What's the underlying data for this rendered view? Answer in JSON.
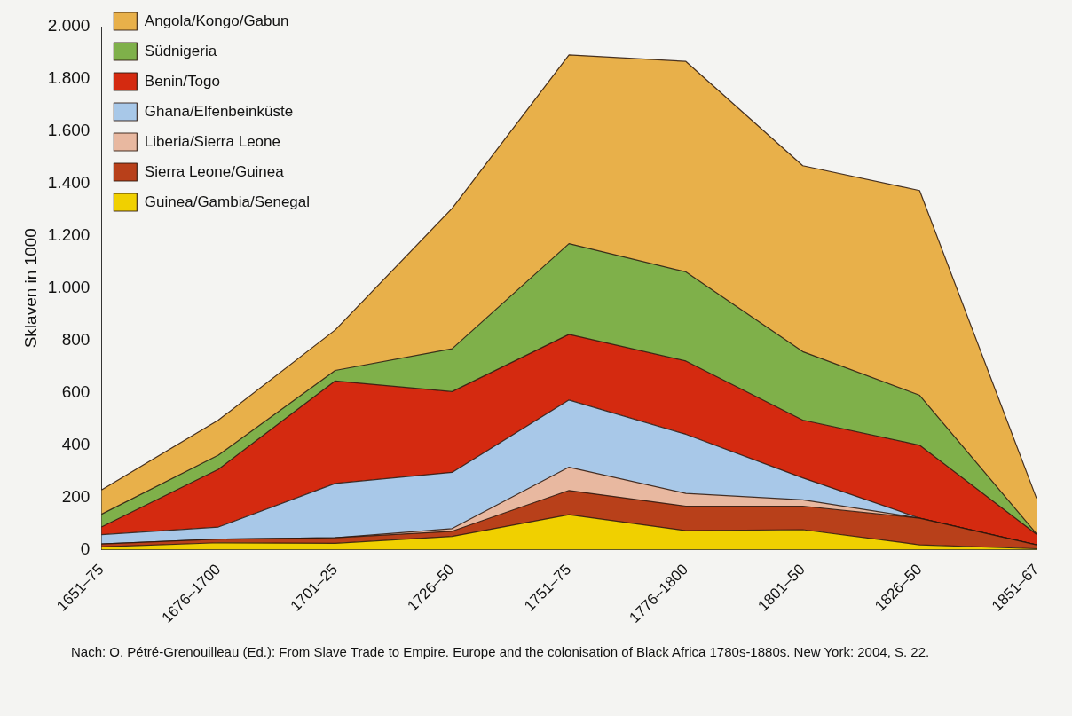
{
  "chart_data": {
    "type": "area",
    "stacked": true,
    "ylabel": "Sklaven in 1000",
    "categories": [
      "1651–75",
      "1676–1700",
      "1701–25",
      "1726–50",
      "1751–75",
      "1776–1800",
      "1801–50",
      "1826–50",
      "1851–67"
    ],
    "series": [
      {
        "name": "Guinea/Gambia/Senegal",
        "color": "#f0d000",
        "values": [
          10,
          26,
          24,
          50,
          133,
          72,
          76,
          18,
          3
        ]
      },
      {
        "name": "Sierra Leone/Guinea",
        "color": "#b8401a",
        "values": [
          11,
          14,
          21,
          20,
          93,
          94,
          90,
          102,
          15
        ]
      },
      {
        "name": "Liberia/Sierra Leone",
        "color": "#e8b8a0",
        "values": [
          0,
          0,
          0,
          10,
          89,
          49,
          24,
          0,
          0
        ]
      },
      {
        "name": "Ghana/Elfenbeinküste",
        "color": "#a8c8e8",
        "values": [
          36,
          46,
          208,
          215,
          257,
          226,
          84,
          0,
          0
        ]
      },
      {
        "name": "Benin/Togo",
        "color": "#d42a10",
        "values": [
          29,
          221,
          392,
          309,
          251,
          280,
          221,
          279,
          40
        ]
      },
      {
        "name": "Südnigeria",
        "color": "#7fb04a",
        "values": [
          49,
          54,
          40,
          164,
          347,
          341,
          262,
          191,
          2
        ]
      },
      {
        "name": "Angola/Kongo/Gabun",
        "color": "#e8b04a",
        "values": [
          93,
          134,
          155,
          537,
          722,
          805,
          711,
          783,
          136
        ]
      }
    ],
    "ylim": [
      0,
      2000
    ],
    "yticks": [
      0,
      200,
      400,
      600,
      800,
      {
        "value": 1000,
        "label": "1.000"
      },
      {
        "value": 1200,
        "label": "1.200"
      },
      {
        "value": 1400,
        "label": "1.400"
      },
      {
        "value": 1600,
        "label": "1.600"
      },
      {
        "value": 1800,
        "label": "1.800"
      },
      {
        "value": 2000,
        "label": "2.000"
      }
    ],
    "grid": false,
    "legend": "top left",
    "marker": "none",
    "annotations": [
      "Nach: O. Pétré-Grenouilleau (Ed.): From Slave Trade to Empire. Europe and the colonisation of Black Africa 1780s-1880s. New York: 2004, S. 22."
    ]
  }
}
